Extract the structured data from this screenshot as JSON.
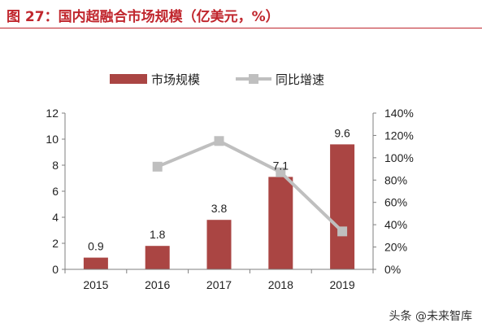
{
  "figure_title": "图 27：国内超融合市场规模（亿美元，%）",
  "watermark": "头条 @未来智库",
  "colors": {
    "title": "#c0262d",
    "bar": "#aa4543",
    "line": "#bfbfbf",
    "axis": "#7f7f7f",
    "text": "#1f1f1f"
  },
  "chart_data": {
    "type": "bar",
    "categories": [
      "2015",
      "2016",
      "2017",
      "2018",
      "2019"
    ],
    "series": [
      {
        "name": "市场规模",
        "type": "bar",
        "axis": "left",
        "values": [
          0.9,
          1.8,
          3.8,
          7.1,
          9.6
        ],
        "labels": [
          "0.9",
          "1.8",
          "3.8",
          "7.1",
          "9.6"
        ]
      },
      {
        "name": "同比增速",
        "type": "line",
        "axis": "right",
        "values": [
          null,
          92,
          115,
          87,
          34
        ]
      }
    ],
    "y_left": {
      "ylim": [
        0,
        12
      ],
      "ticks": [
        "0",
        "2",
        "4",
        "6",
        "8",
        "10",
        "12"
      ]
    },
    "y_right": {
      "ylim": [
        0,
        140
      ],
      "ticks": [
        "0%",
        "20%",
        "40%",
        "60%",
        "80%",
        "100%",
        "120%",
        "140%"
      ]
    },
    "legend": {
      "placement": "top-center",
      "items": [
        "市场规模",
        "同比增速"
      ]
    },
    "grid": false
  }
}
